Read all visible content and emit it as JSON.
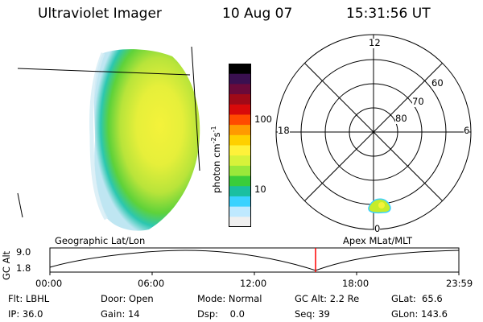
{
  "header": {
    "title": "Ultraviolet Imager",
    "date": "10 Aug 07",
    "time": "15:31:56 UT"
  },
  "colorbar": {
    "unit_label": "photon cm",
    "unit_sup1": "-2",
    "unit_mid": "s",
    "unit_sup2": "-1",
    "tick_100": "100",
    "tick_10": "10",
    "colors": [
      "#000000",
      "#3a1050",
      "#6a0a3a",
      "#a00a18",
      "#d80a0a",
      "#ff4a00",
      "#ff9a00",
      "#ffd000",
      "#fff23a",
      "#d8f23a",
      "#9ae83a",
      "#3acd3a",
      "#1abfa0",
      "#3ad2ff",
      "#bfe9ff",
      "#f0f0f0"
    ]
  },
  "polar_plot": {
    "mlt_labels": {
      "top": "12",
      "left": "18",
      "right": "6",
      "bottom": "0"
    },
    "lat_labels": [
      "60",
      "70",
      "80"
    ]
  },
  "timeline": {
    "left_caption": "Geographic Lat/Lon",
    "right_caption": "Apex MLat/MLT",
    "y_axis_title": "GC Alt",
    "y_ticks": [
      "9.0",
      "1.8"
    ],
    "x_ticks": [
      "00:00",
      "06:00",
      "12:00",
      "18:00",
      "23:59"
    ],
    "marker_color": "#ff0000"
  },
  "info": {
    "col1": [
      "Flt: LBHL",
      "IP: 36.0"
    ],
    "col2": [
      "Door: Open",
      "Gain: 14"
    ],
    "col3": [
      "Mode: Normal",
      "Dsp:    0.0"
    ],
    "col4": [
      "GC Alt: 2.2 Re",
      "Seq: 39"
    ],
    "col5": [
      "GLat:  65.6",
      "GLon: 143.6"
    ]
  }
}
